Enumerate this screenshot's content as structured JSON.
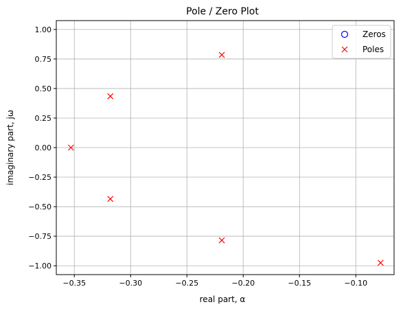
{
  "chart_data": {
    "type": "scatter",
    "title": "Pole / Zero Plot",
    "xlabel": "real part, α",
    "ylabel": "imaginary part, jω",
    "xlim": [
      -0.366,
      -0.066
    ],
    "ylim": [
      -1.075,
      1.075
    ],
    "xticks": [
      -0.35,
      -0.3,
      -0.25,
      -0.2,
      -0.15,
      -0.1
    ],
    "xtick_labels": [
      "−0.35",
      "−0.30",
      "−0.25",
      "−0.20",
      "−0.15",
      "−0.10"
    ],
    "yticks": [
      1.0,
      0.75,
      0.5,
      0.25,
      0.0,
      -0.25,
      -0.5,
      -0.75,
      -1.0
    ],
    "ytick_labels": [
      "1.00",
      "0.75",
      "0.50",
      "0.25",
      "0.00",
      "−0.25",
      "−0.50",
      "−0.75",
      "−1.00"
    ],
    "grid": true,
    "legend_position": "top-right",
    "series": [
      {
        "name": "Zeros",
        "marker": "circle",
        "color": "#0000ff",
        "points": []
      },
      {
        "name": "Poles",
        "marker": "x",
        "color": "#ff0000",
        "points": [
          {
            "x": -0.353,
            "y": 0.0
          },
          {
            "x": -0.318,
            "y": 0.435
          },
          {
            "x": -0.318,
            "y": -0.435
          },
          {
            "x": -0.219,
            "y": 0.785
          },
          {
            "x": -0.219,
            "y": -0.785
          },
          {
            "x": -0.078,
            "y": -0.975
          }
        ]
      }
    ]
  }
}
